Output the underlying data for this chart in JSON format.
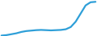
{
  "x": [
    0,
    1,
    2,
    3,
    4,
    5,
    6,
    7,
    8,
    9,
    10,
    11,
    12,
    13,
    14,
    15,
    16,
    17,
    18,
    19
  ],
  "y": [
    1,
    2,
    4,
    6,
    9,
    11,
    12,
    13,
    13.5,
    13,
    12.5,
    13,
    13.5,
    15,
    20,
    32,
    50,
    68,
    75,
    76
  ],
  "line_color": "#2e9fd8",
  "linewidth": 1.6,
  "background_color": "#ffffff",
  "ylim": [
    0,
    80
  ],
  "xlim": [
    -0.3,
    19.3
  ]
}
